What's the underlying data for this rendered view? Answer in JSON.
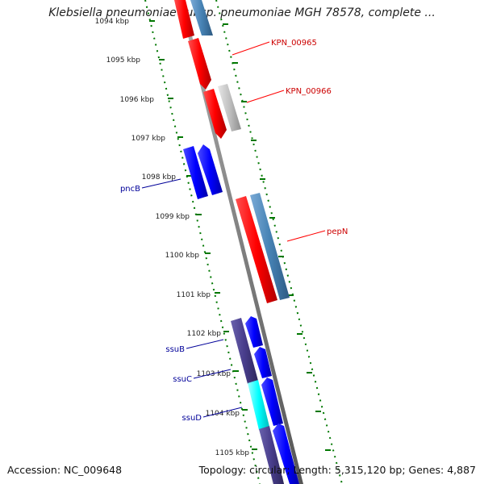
{
  "title": "Klebsiella pneumoniae subsp. pneumoniae MGH 78578, complete ...",
  "footer": {
    "accession": "Accession: NC_009648",
    "summary": "Topology: circular; Length: 5,315,120 bp; Genes: 4,887"
  },
  "tick_labels": [
    "1094 kbp",
    "1095 kbp",
    "1096 kbp",
    "1097 kbp",
    "1098 kbp",
    "1099 kbp",
    "1100 kbp",
    "1101 kbp",
    "1102 kbp",
    "1103 kbp",
    "1104 kbp",
    "1105 kbp"
  ],
  "colors": {
    "backbone": "#808080",
    "red": "#ff0000",
    "steelblue": "#4682b4",
    "grey": "#c0c0c0",
    "blue": "#0000ff",
    "darkslateblue": "#483d8b",
    "cyan": "#00ffff",
    "tick": "#007700"
  },
  "gene_labels": [
    {
      "name": "KPN_00965",
      "color": "#cc0000"
    },
    {
      "name": "KPN_00966",
      "color": "#cc0000"
    },
    {
      "name": "pncB",
      "color": "#000099"
    },
    {
      "name": "pepN",
      "color": "#cc0000"
    },
    {
      "name": "ssuB",
      "color": "#000099"
    },
    {
      "name": "ssuC",
      "color": "#000099"
    },
    {
      "name": "ssuD",
      "color": "#000099"
    }
  ]
}
